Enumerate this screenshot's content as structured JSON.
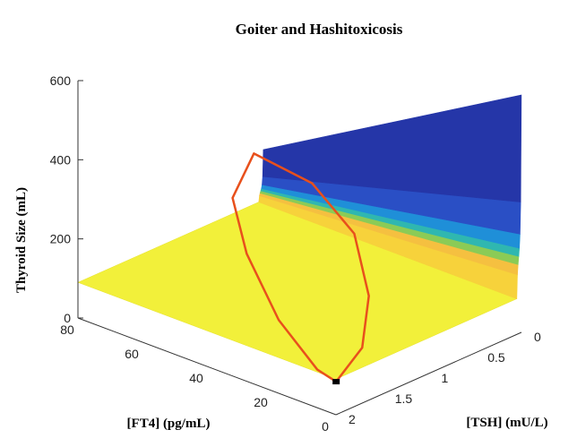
{
  "chart_data": {
    "type": "surface",
    "title": "Goiter and Hashitoxicosis",
    "xlabel": "[FT4] (pg/mL)",
    "ylabel": "[TSH] (mU/L)",
    "zlabel": "Thyroid Size (mL)",
    "xlim": [
      0,
      80
    ],
    "ylim": [
      0,
      2
    ],
    "zlim": [
      0,
      600
    ],
    "x_ticks": [
      "0",
      "20",
      "40",
      "60",
      "80"
    ],
    "y_ticks": [
      "0",
      "0.5",
      "1",
      "1.5",
      "2"
    ],
    "z_ticks": [
      "0",
      "200",
      "400",
      "600"
    ],
    "grid": false,
    "colormap": "parula",
    "surface_description_values": {
      "plateau_level": 90,
      "ridge_peak": 600
    },
    "trajectory": {
      "color": "#e8501c",
      "points": [
        {
          "ft4": 8,
          "tsh": 1.72,
          "size": 30
        },
        {
          "ft4": 12,
          "tsh": 1.3,
          "size": 60
        },
        {
          "ft4": 20,
          "tsh": 0.95,
          "size": 130
        },
        {
          "ft4": 34,
          "tsh": 0.62,
          "size": 210
        },
        {
          "ft4": 52,
          "tsh": 0.45,
          "size": 265
        },
        {
          "ft4": 70,
          "tsh": 0.45,
          "size": 285
        },
        {
          "ft4": 68,
          "tsh": 0.75,
          "size": 210
        },
        {
          "ft4": 55,
          "tsh": 1.05,
          "size": 140
        },
        {
          "ft4": 35,
          "tsh": 1.4,
          "size": 70
        },
        {
          "ft4": 15,
          "tsh": 1.68,
          "size": 35
        },
        {
          "ft4": 8,
          "tsh": 1.72,
          "size": 30
        }
      ],
      "start_marker": {
        "ft4": 8,
        "tsh": 1.72,
        "size": 30
      }
    }
  }
}
